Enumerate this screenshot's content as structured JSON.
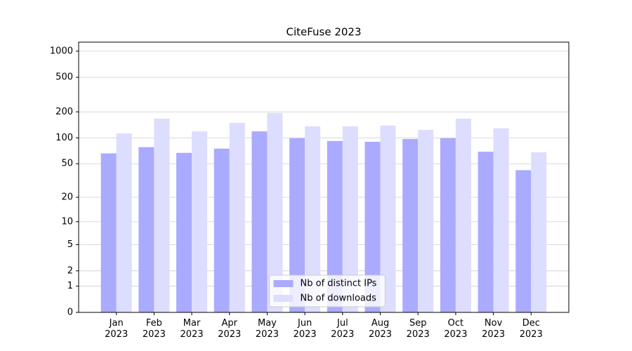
{
  "chart_data": {
    "type": "bar",
    "title": "CiteFuse 2023",
    "scale": "log1p",
    "categories": [
      "Jan\n2023",
      "Feb\n2023",
      "Mar\n2023",
      "Apr\n2023",
      "May\n2023",
      "Jun\n2023",
      "Jul\n2023",
      "Aug\n2023",
      "Sep\n2023",
      "Oct\n2023",
      "Nov\n2023",
      "Dec\n2023"
    ],
    "series": [
      {
        "name": "Nb of distinct IPs",
        "color": "#aaaaff",
        "values": [
          66,
          78,
          67,
          75,
          119,
          99,
          92,
          90,
          97,
          99,
          69,
          42
        ]
      },
      {
        "name": "Nb of downloads",
        "color": "#ddddff",
        "values": [
          113,
          167,
          119,
          149,
          194,
          136,
          136,
          139,
          124,
          167,
          129,
          68
        ]
      }
    ],
    "ylim": [
      0,
      1270
    ],
    "yticks": [
      0,
      1,
      2,
      5,
      10,
      20,
      50,
      100,
      200,
      500,
      1000
    ],
    "grid": true,
    "legend": "lower center"
  }
}
